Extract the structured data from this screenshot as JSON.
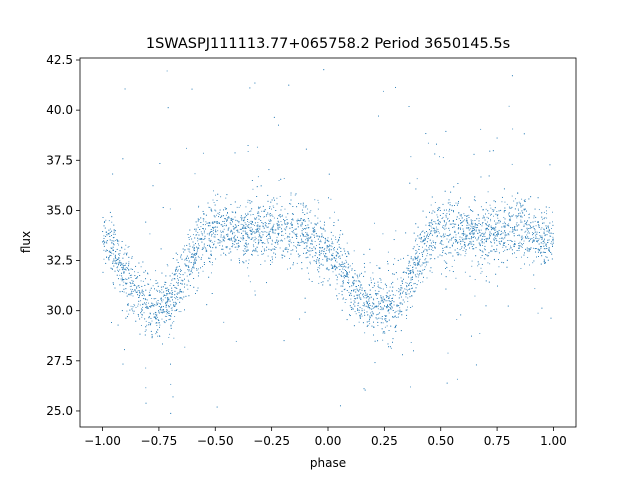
{
  "chart_data": {
    "type": "scatter",
    "title": "1SWASPJ111113.77+065758.2 Period 3650145.5s",
    "xlabel": "phase",
    "ylabel": "flux",
    "xlim": [
      -1.1,
      1.1
    ],
    "ylim": [
      24.2,
      42.6
    ],
    "xticks": [
      -1.0,
      -0.75,
      -0.5,
      -0.25,
      0.0,
      0.25,
      0.5,
      0.75,
      1.0
    ],
    "xtick_labels": [
      "−1.00",
      "−0.75",
      "−0.50",
      "−0.25",
      "0.00",
      "0.25",
      "0.50",
      "0.75",
      "1.00"
    ],
    "yticks": [
      25.0,
      27.5,
      30.0,
      32.5,
      35.0,
      37.5,
      40.0,
      42.5
    ],
    "ytick_labels": [
      "25.0",
      "27.5",
      "30.0",
      "32.5",
      "35.0",
      "37.5",
      "40.0",
      "42.5"
    ],
    "grid": false,
    "legend": "none",
    "marker_color": "#1f77b4",
    "series": [
      {
        "x": [
          -1.0,
          -0.95,
          -0.9,
          -0.85,
          -0.8,
          -0.75,
          -0.7,
          -0.65,
          -0.6,
          -0.55,
          -0.5,
          -0.45,
          -0.4,
          -0.35,
          -0.3,
          -0.25,
          -0.2,
          -0.15,
          -0.1,
          -0.05,
          0.0,
          0.05,
          0.1,
          0.15,
          0.2,
          0.25,
          0.3,
          0.35,
          0.4,
          0.45,
          0.5,
          0.55,
          0.6,
          0.65,
          0.7,
          0.75,
          0.8,
          0.85,
          0.9,
          0.95,
          1.0
        ],
        "y": [
          33.4,
          33.0,
          31.6,
          30.8,
          30.4,
          30.2,
          30.6,
          31.6,
          32.8,
          33.6,
          34.0,
          34.0,
          33.9,
          33.8,
          33.8,
          33.9,
          34.1,
          34.0,
          33.8,
          33.4,
          33.0,
          32.4,
          31.2,
          30.6,
          30.3,
          30.2,
          30.4,
          31.2,
          32.6,
          33.6,
          34.0,
          34.0,
          33.9,
          33.8,
          33.8,
          33.9,
          34.1,
          34.0,
          33.8,
          33.6,
          33.4
        ]
      }
    ]
  }
}
